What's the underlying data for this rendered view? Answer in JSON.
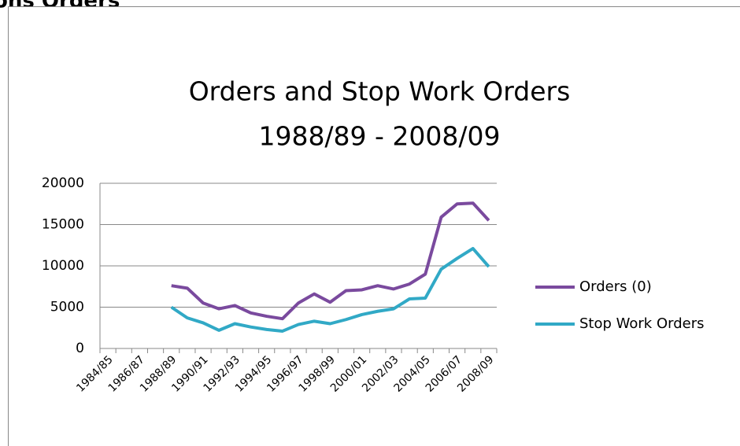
{
  "page_heading": "ons Orders",
  "chart_data": {
    "type": "line",
    "title": "Orders and Stop Work Orders",
    "subtitle": "1988/89 - 2008/09",
    "categories": [
      "1984/85",
      null,
      "1986/87",
      null,
      "1988/89",
      null,
      "1990/91",
      null,
      "1992/93",
      null,
      "1994/95",
      null,
      "1996/97",
      null,
      "1998/99",
      null,
      "2000/01",
      null,
      "2002/03",
      null,
      "2004/05",
      null,
      "2006/07",
      null,
      "2008/09"
    ],
    "series": [
      {
        "name": "Orders (0)",
        "color": "#7a4a9e",
        "values": [
          null,
          null,
          null,
          null,
          7600,
          7300,
          5500,
          4800,
          5200,
          4300,
          3900,
          3600,
          5500,
          6600,
          5600,
          7000,
          7100,
          7600,
          7200,
          7800,
          9000,
          15900,
          17500,
          17600,
          15500
        ]
      },
      {
        "name": "Stop Work Orders",
        "color": "#31a9c6",
        "values": [
          null,
          null,
          null,
          null,
          5000,
          3700,
          3100,
          2200,
          3000,
          2600,
          2300,
          2100,
          2900,
          3300,
          3000,
          3500,
          4100,
          4500,
          4800,
          6000,
          6100,
          9600,
          10900,
          12100,
          9900
        ]
      }
    ],
    "ylim": [
      0,
      20000
    ],
    "yticks": [
      0,
      5000,
      10000,
      15000,
      20000
    ],
    "grid": true,
    "legend": "right"
  }
}
